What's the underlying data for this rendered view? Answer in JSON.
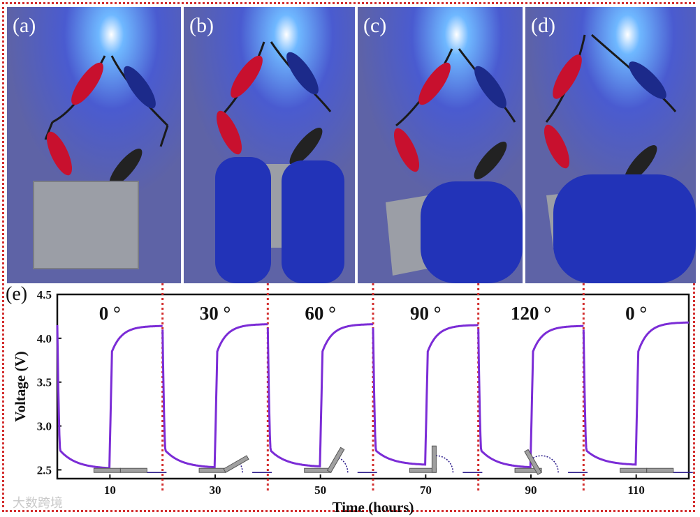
{
  "panels": [
    {
      "label": "(a)"
    },
    {
      "label": "(b)"
    },
    {
      "label": "(c)"
    },
    {
      "label": "(d)"
    }
  ],
  "colors": {
    "curve": "#7b2cd6",
    "divider": "#d32f2f",
    "led": "#2f7cff",
    "glove": "#2233b8"
  },
  "watermark": "大数跨境",
  "chart_data": {
    "type": "line",
    "panel_label": "(e)",
    "xlabel": "Time (hours)",
    "ylabel": "Voltage (V)",
    "xlim": [
      0,
      120
    ],
    "ylim": [
      2.4,
      4.5
    ],
    "xticks": [
      10,
      30,
      50,
      70,
      90,
      110
    ],
    "yticks": [
      2.5,
      3.0,
      3.5,
      4.0,
      4.5
    ],
    "ytick_labels": [
      "2.5",
      "3.0",
      "3.5",
      "4.0",
      "4.5"
    ],
    "segments": [
      {
        "angle_label": "0 °",
        "angle": 0,
        "x0": 0,
        "x1": 20,
        "vstart": 4.15,
        "vmin": 2.52,
        "vend": 4.14
      },
      {
        "angle_label": "30 °",
        "angle": 30,
        "x0": 20,
        "x1": 40,
        "vstart": 4.1,
        "vmin": 2.53,
        "vend": 4.16
      },
      {
        "angle_label": "60 °",
        "angle": 60,
        "x0": 40,
        "x1": 60,
        "vstart": 4.12,
        "vmin": 2.54,
        "vend": 4.16
      },
      {
        "angle_label": "90 °",
        "angle": 90,
        "x0": 60,
        "x1": 80,
        "vstart": 4.12,
        "vmin": 2.56,
        "vend": 4.15
      },
      {
        "angle_label": "120 °",
        "angle": 120,
        "x0": 80,
        "x1": 100,
        "vstart": 4.11,
        "vmin": 2.53,
        "vend": 4.14
      },
      {
        "angle_label": "0 °",
        "angle": 0,
        "x0": 100,
        "x1": 120,
        "vstart": 4.1,
        "vmin": 2.56,
        "vend": 4.18
      }
    ]
  }
}
